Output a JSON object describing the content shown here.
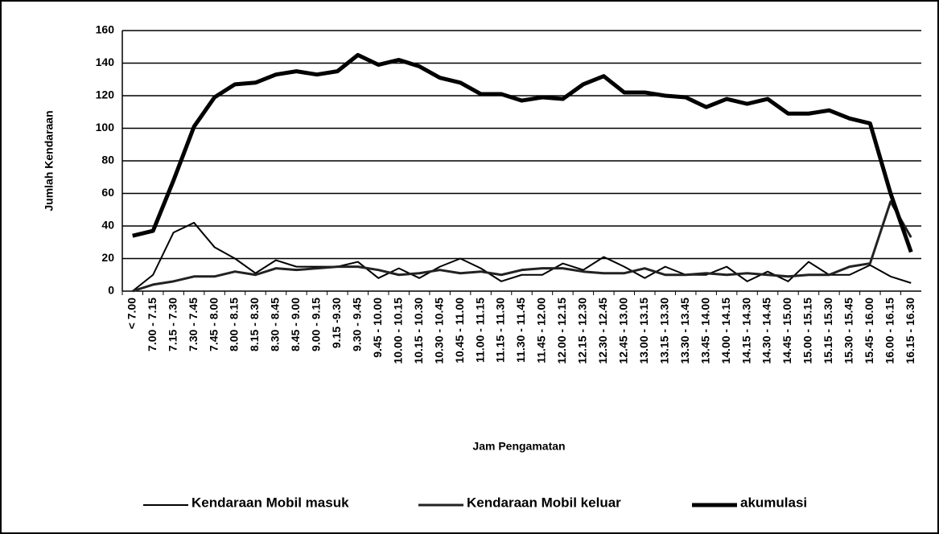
{
  "chart_data": {
    "type": "line",
    "xlabel": "Jam Pengamatan",
    "ylabel": "Jumlah Kendaraan",
    "categories": [
      "< 7.00",
      "7.00 - 7.15",
      "7.15 - 7.30",
      "7.30 - 7.45",
      "7.45 - 8.00",
      "8.00 - 8.15",
      "8.15 - 8.30",
      "8.30 - 8.45",
      "8.45 - 9.00",
      "9.00 - 9.15",
      "9.15 -9.30",
      "9.30 - 9.45",
      "9.45 - 10.00",
      "10.00 - 10.15",
      "10.15 - 10.30",
      "10.30 - 10.45",
      "10.45 - 11.00",
      "11.00 - 11.15",
      "11.15 - 11.30",
      "11.30 - 11.45",
      "11.45 - 12.00",
      "12.00 - 12.15",
      "12.15 - 12.30",
      "12.30 - 12.45",
      "12.45 - 13.00",
      "13.00 - 13.15",
      "13.15 - 13.30",
      "13.30 - 13.45",
      "13.45 - 14.00",
      "14.00 - 14.15",
      "14.15 - 14.30",
      "14.30 - 14.45",
      "14.45 - 15.00",
      "15.00 - 15.15",
      "15.15 - 15.30",
      "15.30 - 15.45",
      "15.45 - 16.00",
      "16.00 - 16.15",
      "16.15 - 16.30"
    ],
    "series": [
      {
        "name": "Kendaraan Mobil masuk",
        "color": "#000000",
        "values": [
          0,
          10,
          36,
          42,
          27,
          20,
          11,
          19,
          15,
          15,
          15,
          18,
          8,
          14,
          8,
          15,
          20,
          14,
          6,
          10,
          10,
          17,
          13,
          21,
          15,
          8,
          15,
          10,
          10,
          15,
          6,
          12,
          6,
          18,
          10,
          10,
          16,
          9,
          5
        ]
      },
      {
        "name": "Kendaraan Mobil keluar",
        "color": "#222222",
        "values": [
          0,
          4,
          6,
          9,
          9,
          12,
          10,
          14,
          13,
          14,
          15,
          15,
          13,
          10,
          11,
          13,
          11,
          12,
          10,
          13,
          14,
          14,
          12,
          11,
          11,
          14,
          10,
          10,
          11,
          10,
          11,
          10,
          9,
          10,
          10,
          15,
          17,
          55,
          33
        ]
      },
      {
        "name": "akumulasi",
        "color": "#000000",
        "values": [
          34,
          37,
          68,
          101,
          119,
          127,
          128,
          133,
          135,
          133,
          135,
          145,
          139,
          142,
          138,
          131,
          128,
          121,
          121,
          117,
          119,
          118,
          127,
          132,
          122,
          122,
          120,
          119,
          113,
          118,
          115,
          118,
          109,
          109,
          111,
          106,
          103,
          60,
          24
        ]
      }
    ],
    "ylim": [
      0,
      160
    ],
    "yticks": [
      0,
      20,
      40,
      60,
      80,
      100,
      120,
      140,
      160
    ],
    "grid": true,
    "legend": "bottom"
  }
}
